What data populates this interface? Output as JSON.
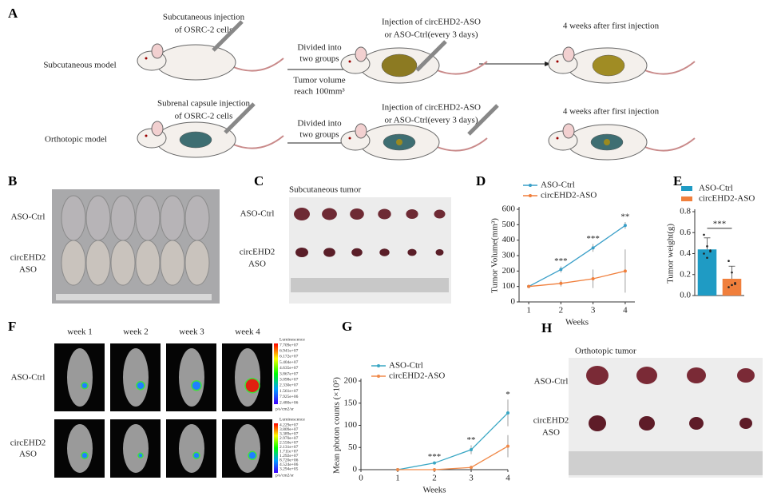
{
  "panel_a": {
    "letter": "A",
    "rows": [
      {
        "model": "Subcutaneous model",
        "step1": [
          "Subcutaneous injection",
          "of OSRC-2 cells"
        ],
        "arrow1": [
          "Divided into",
          "two groups"
        ],
        "arrow1_below": [
          "Tumor volume",
          "reach 100mm³"
        ],
        "step2": [
          "Injection of circEHD2-ASO",
          "or ASO-Ctrl(every 3 days)"
        ],
        "step3": "4 weeks after first injection"
      },
      {
        "model": "Orthotopic  model",
        "step1": [
          "Subrenal capsule injection",
          "of OSRC-2 cells"
        ],
        "arrow1": [
          "Divided into",
          "two groups"
        ],
        "step2": [
          "Injection of circEHD2-ASO",
          "or ASO-Ctrl(every 3 days)"
        ],
        "step3": "4 weeks after first injection"
      }
    ]
  },
  "panel_b": {
    "letter": "B",
    "group1": "ASO-Ctrl",
    "group2": [
      "circEHD2",
      "ASO"
    ]
  },
  "panel_c": {
    "letter": "C",
    "title": "Subcutaneous tumor",
    "group1": "ASO-Ctrl",
    "group2": [
      "circEHD2",
      "ASO"
    ]
  },
  "panel_f": {
    "letter": "F",
    "weeks": [
      "week 1",
      "week 2",
      "week 3",
      "week 4"
    ],
    "group1": "ASO-Ctrl",
    "group2": [
      "circEHD2",
      "ASO"
    ],
    "scale_top": {
      "title": "Luminescence",
      "ticks": [
        "7.709e+07",
        "6.941e+07",
        "6.172e+07",
        "5.404e+07",
        "4.635e+07",
        "3.867e+07",
        "3.098e+07",
        "2.330e+07",
        "1.561e+07",
        "7.925e+06",
        "2.480e+06"
      ],
      "unit": "p/s/cm2/sr"
    },
    "scale_bottom": {
      "title": "Luminescence",
      "ticks": [
        "4.229e+07",
        "3.809e+07",
        "3.389e+07",
        "2.970e+07",
        "2.550e+07",
        "2.131e+07",
        "1.711e+07",
        "1.292e+07",
        "8.720e+06",
        "4.524e+06",
        "3.294e+05"
      ],
      "unit": "p/s/cm2/sr"
    }
  },
  "panel_h": {
    "letter": "H",
    "title": "Orthotopic tumor",
    "group1": "ASO-Ctrl",
    "group2": [
      "circEHD2",
      "ASO"
    ]
  },
  "chart_data": [
    {
      "type": "line",
      "panel": "D",
      "x": [
        1,
        2,
        3,
        4
      ],
      "xlim": [
        0.7,
        4.3
      ],
      "xticks": [
        1,
        2,
        3,
        4
      ],
      "ylim": [
        0,
        600
      ],
      "yticks": [
        0,
        100,
        200,
        300,
        400,
        500,
        600
      ],
      "xlabel": "Weeks",
      "ylabel": "Tumor Volume(mm³)",
      "series": [
        {
          "name": "ASO-Ctrl",
          "color": "#3a9fc8",
          "values": [
            100,
            210,
            350,
            495
          ],
          "errors": [
            8,
            20,
            25,
            22
          ]
        },
        {
          "name": "circEHD2-ASO",
          "color": "#f07f3c",
          "values": [
            100,
            120,
            150,
            200
          ],
          "errors": [
            5,
            20,
            60,
            140
          ]
        }
      ],
      "significance": [
        null,
        "***",
        "***",
        "**"
      ]
    },
    {
      "type": "bar",
      "panel": "E",
      "ylim": [
        0,
        0.8
      ],
      "yticks": [
        {
          "value": 0,
          "label": "0.0"
        },
        {
          "value": 0.2,
          "label": "0.2"
        },
        {
          "value": 0.4,
          "label": "0.4"
        },
        {
          "value": 0.6,
          "label": "0.6"
        },
        {
          "value": 0.8,
          "label": "0.8"
        }
      ],
      "ylabel": "Tumor weight(g)",
      "series": [
        {
          "name": "ASO-Ctrl",
          "color": "#1f9bc4",
          "values": [
            0.44
          ],
          "errors": [
            0.11
          ],
          "points": [
            0.58,
            0.47,
            0.43,
            0.4,
            0.36,
            0.42
          ]
        },
        {
          "name": "circEHD2-ASO",
          "color": "#f07f3c",
          "values": [
            0.16
          ],
          "errors": [
            0.12
          ],
          "points": [
            0.33,
            0.22,
            0.12,
            0.08,
            0.1,
            0.11
          ]
        }
      ],
      "significance": "***"
    },
    {
      "type": "line",
      "panel": "G",
      "x": [
        1,
        2,
        3,
        4
      ],
      "xlim": [
        0,
        4
      ],
      "xticks": [
        0,
        1,
        2,
        3,
        4
      ],
      "ylim": [
        0,
        200
      ],
      "yticks": [
        0,
        50,
        100,
        150,
        200
      ],
      "xlabel": "Weeks",
      "ylabel": "Mean photon counts (×10⁵)",
      "series": [
        {
          "name": "ASO-Ctrl",
          "color": "#3aa7c4",
          "values": [
            0,
            15,
            45,
            128
          ],
          "errors": [
            0,
            2,
            10,
            30
          ]
        },
        {
          "name": "circEHD2-ASO",
          "color": "#f08a4a",
          "values": [
            0,
            0,
            5,
            53
          ],
          "errors": [
            0,
            0,
            4,
            25
          ]
        }
      ],
      "significance": [
        null,
        "***",
        "**",
        "*"
      ]
    }
  ]
}
